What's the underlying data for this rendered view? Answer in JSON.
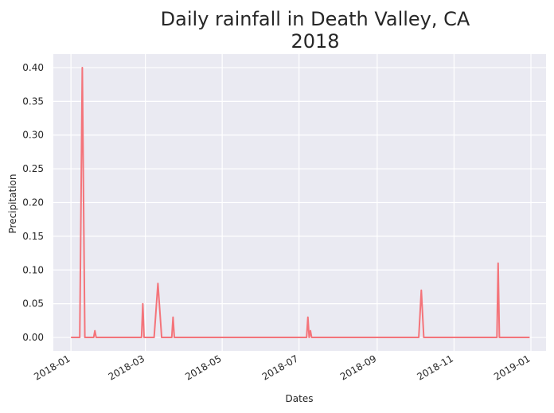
{
  "chart_data": {
    "type": "line",
    "title": "Daily rainfall in Death Valley, CA",
    "subtitle": "2018",
    "xlabel": "Dates",
    "ylabel": "Precipitation",
    "ylim": [
      -0.02,
      0.42
    ],
    "xlim": [
      "2017-12-18",
      "2019-01-13"
    ],
    "grid": true,
    "background_color": "#EAEAF2",
    "line_color": "#F4747A",
    "x_ticks": [
      "2018-01",
      "2018-03",
      "2018-05",
      "2018-07",
      "2018-09",
      "2018-11",
      "2019-01"
    ],
    "y_ticks": [
      "0.00",
      "0.05",
      "0.10",
      "0.15",
      "0.20",
      "0.25",
      "0.30",
      "0.35",
      "0.40"
    ],
    "series": [
      {
        "x": [
          "2018-01-01",
          "2018-01-08",
          "2018-01-10",
          "2018-01-12",
          "2018-01-19",
          "2018-01-20",
          "2018-01-21",
          "2018-02-26",
          "2018-02-27",
          "2018-02-28",
          "2018-03-08",
          "2018-03-11",
          "2018-03-14",
          "2018-03-22",
          "2018-03-23",
          "2018-03-24",
          "2018-07-07",
          "2018-07-08",
          "2018-07-09",
          "2018-07-10",
          "2018-07-11",
          "2018-07-12",
          "2018-10-04",
          "2018-10-06",
          "2018-10-08",
          "2018-12-05",
          "2018-12-06",
          "2018-12-07",
          "2018-12-31"
        ],
        "values": [
          0.0,
          0.0,
          0.4,
          0.0,
          0.0,
          0.01,
          0.0,
          0.0,
          0.05,
          0.0,
          0.0,
          0.08,
          0.0,
          0.0,
          0.03,
          0.0,
          0.0,
          0.03,
          0.0,
          0.01,
          0.0,
          0.0,
          0.0,
          0.07,
          0.0,
          0.0,
          0.11,
          0.0,
          0.0
        ]
      }
    ]
  }
}
